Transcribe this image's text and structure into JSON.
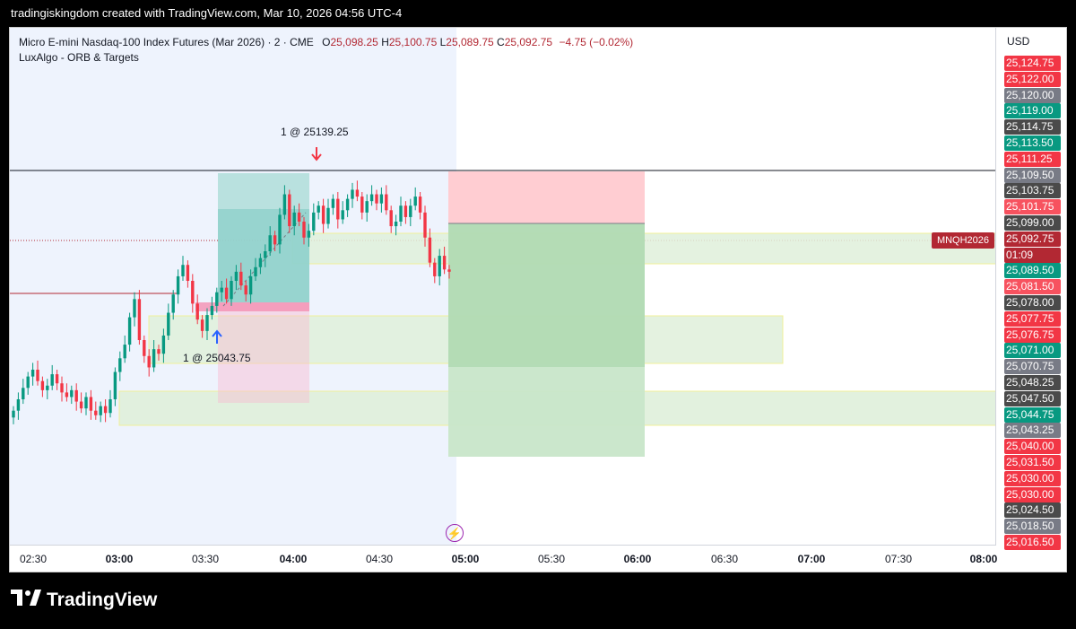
{
  "header": {
    "text": "tradingiskingdom created with TradingView.com, Mar 10, 2026 04:56 UTC-4"
  },
  "legend": {
    "symbol": "Micro E-mini Nasdaq-100 Index Futures (Mar 2026) · 2 · CME",
    "o_label": "O",
    "o_value": "25,098.25",
    "h_label": "H",
    "h_value": "25,100.75",
    "l_label": "L",
    "l_value": "25,089.75",
    "c_label": "C",
    "c_value": "25,092.75",
    "change": "−4.75 (−0.02%)",
    "indicator": "LuxAlgo - ORB & Targets"
  },
  "annotations": {
    "sell": "1 @ 25139.25",
    "buy": "1 @ 25043.75"
  },
  "price_scale": {
    "currency": "USD",
    "tags": [
      {
        "text": "25,124.75",
        "color": "#f23645"
      },
      {
        "text": "25,122.00",
        "color": "#f23645"
      },
      {
        "text": "25,120.00",
        "color": "#787b86"
      },
      {
        "text": "25,119.00",
        "color": "#089981"
      },
      {
        "text": "25,114.75",
        "color": "#4a4a4a"
      },
      {
        "text": "25,113.50",
        "color": "#089981"
      },
      {
        "text": "25,111.25",
        "color": "#f23645"
      },
      {
        "text": "25,109.50",
        "color": "#787b86"
      },
      {
        "text": "25,103.75",
        "color": "#4a4a4a"
      },
      {
        "text": "25,101.75",
        "color": "#f7525f"
      },
      {
        "text": "25,099.00",
        "color": "#4a4a4a"
      },
      {
        "text": "25,092.75",
        "color": "#b22833"
      },
      {
        "text": "01:09",
        "color": "#b22833"
      },
      {
        "text": "25,089.50",
        "color": "#089981"
      },
      {
        "text": "25,081.50",
        "color": "#f7525f"
      },
      {
        "text": "25,078.00",
        "color": "#4a4a4a"
      },
      {
        "text": "25,077.75",
        "color": "#f23645"
      },
      {
        "text": "25,076.75",
        "color": "#f23645"
      },
      {
        "text": "25,071.00",
        "color": "#089981"
      },
      {
        "text": "25,070.75",
        "color": "#787b86"
      },
      {
        "text": "25,048.25",
        "color": "#4a4a4a"
      },
      {
        "text": "25,047.50",
        "color": "#4a4a4a"
      },
      {
        "text": "25,044.75",
        "color": "#089981"
      },
      {
        "text": "25,043.25",
        "color": "#787b86"
      },
      {
        "text": "25,040.00",
        "color": "#f23645"
      },
      {
        "text": "25,031.50",
        "color": "#f23645"
      },
      {
        "text": "25,030.00",
        "color": "#f23645"
      },
      {
        "text": "25,030.00",
        "color": "#f23645"
      },
      {
        "text": "25,024.50",
        "color": "#4a4a4a"
      },
      {
        "text": "25,018.50",
        "color": "#787b86"
      },
      {
        "text": "25,016.50",
        "color": "#f23645"
      }
    ],
    "symbol_tag": "MNQH2026"
  },
  "time_axis": [
    {
      "label": "02:30",
      "bold": false
    },
    {
      "label": "03:00",
      "bold": true
    },
    {
      "label": "03:30",
      "bold": false
    },
    {
      "label": "04:00",
      "bold": true
    },
    {
      "label": "04:30",
      "bold": false
    },
    {
      "label": "05:00",
      "bold": true
    },
    {
      "label": "05:30",
      "bold": false
    },
    {
      "label": "06:00",
      "bold": true
    },
    {
      "label": "06:30",
      "bold": false
    },
    {
      "label": "07:00",
      "bold": true
    },
    {
      "label": "07:30",
      "bold": false
    },
    {
      "label": "08:00",
      "bold": true
    }
  ],
  "footer": {
    "brand": "TradingView"
  },
  "colors": {
    "up": "#089981",
    "down": "#f23645",
    "session_bg": "#eef3fd"
  },
  "chart_data": {
    "type": "candlestick",
    "candles_close": [
      25031,
      25036,
      25041,
      25046,
      25049,
      25044,
      25040,
      25042,
      25047,
      25043,
      25039,
      25037,
      25040,
      25035,
      25032,
      25037,
      25031,
      25029,
      25033,
      25030,
      25036,
      25048,
      25054,
      25060,
      25072,
      25080,
      25062,
      25055,
      25050,
      25058,
      25056,
      25064,
      25074,
      25082,
      25090,
      25095,
      25088,
      25078,
      25071,
      25066,
      25073,
      25077,
      25083,
      25085,
      25080,
      25088,
      25092,
      25086,
      25082,
      25090,
      25094,
      25098,
      25101,
      25108,
      25104,
      25117,
      25126,
      25112,
      25118,
      25114,
      25107,
      25110,
      25118,
      25121,
      25113,
      25120,
      25124,
      25115,
      25119,
      25124,
      25128,
      25125,
      25118,
      25123,
      25126,
      25122,
      25126,
      25119,
      25112,
      25114,
      25121,
      25116,
      25121,
      25125,
      25118,
      25107,
      25096,
      25090,
      25099,
      25093,
      25092
    ],
    "long_position_price": "25043.75",
    "short_position_price": "25139.25",
    "last_price": "25,092.75"
  }
}
